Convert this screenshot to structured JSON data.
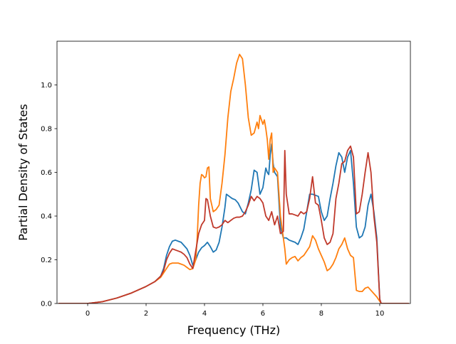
{
  "chart_data": {
    "type": "line",
    "title": "",
    "xlabel": "Frequency (THz)",
    "ylabel": "Partial Density of States",
    "xlim": [
      -1.05,
      11.05
    ],
    "ylim": [
      0.0,
      1.2
    ],
    "xticks": [
      0,
      2,
      4,
      6,
      8,
      10
    ],
    "xtick_labels": [
      "0",
      "2",
      "4",
      "6",
      "8",
      "10"
    ],
    "yticks": [
      0.0,
      0.2,
      0.4,
      0.6,
      0.8,
      1.0
    ],
    "ytick_labels": [
      "0.0",
      "0.2",
      "0.4",
      "0.6",
      "0.8",
      "1.0"
    ],
    "grid": false,
    "legend": "none",
    "series": [
      {
        "color": "#1f77b4",
        "points": [
          [
            -1.0,
            0.0
          ],
          [
            0.0,
            0.0
          ],
          [
            0.5,
            0.008
          ],
          [
            1.0,
            0.025
          ],
          [
            1.5,
            0.048
          ],
          [
            2.0,
            0.078
          ],
          [
            2.3,
            0.1
          ],
          [
            2.5,
            0.125
          ],
          [
            2.6,
            0.16
          ],
          [
            2.7,
            0.22
          ],
          [
            2.8,
            0.26
          ],
          [
            2.9,
            0.285
          ],
          [
            3.0,
            0.29
          ],
          [
            3.1,
            0.285
          ],
          [
            3.2,
            0.28
          ],
          [
            3.3,
            0.265
          ],
          [
            3.4,
            0.25
          ],
          [
            3.5,
            0.22
          ],
          [
            3.6,
            0.175
          ],
          [
            3.7,
            0.2
          ],
          [
            3.8,
            0.235
          ],
          [
            3.9,
            0.255
          ],
          [
            4.0,
            0.265
          ],
          [
            4.1,
            0.28
          ],
          [
            4.2,
            0.26
          ],
          [
            4.3,
            0.235
          ],
          [
            4.4,
            0.245
          ],
          [
            4.5,
            0.28
          ],
          [
            4.6,
            0.35
          ],
          [
            4.7,
            0.44
          ],
          [
            4.75,
            0.5
          ],
          [
            4.85,
            0.49
          ],
          [
            4.95,
            0.48
          ],
          [
            5.05,
            0.475
          ],
          [
            5.15,
            0.46
          ],
          [
            5.3,
            0.42
          ],
          [
            5.4,
            0.41
          ],
          [
            5.5,
            0.46
          ],
          [
            5.6,
            0.52
          ],
          [
            5.7,
            0.61
          ],
          [
            5.8,
            0.6
          ],
          [
            5.9,
            0.5
          ],
          [
            6.0,
            0.53
          ],
          [
            6.1,
            0.62
          ],
          [
            6.15,
            0.6
          ],
          [
            6.2,
            0.59
          ],
          [
            6.25,
            0.68
          ],
          [
            6.3,
            0.73
          ],
          [
            6.35,
            0.64
          ],
          [
            6.4,
            0.6
          ],
          [
            6.5,
            0.58
          ],
          [
            6.6,
            0.35
          ],
          [
            6.7,
            0.3
          ],
          [
            6.8,
            0.3
          ],
          [
            6.9,
            0.29
          ],
          [
            7.0,
            0.285
          ],
          [
            7.1,
            0.28
          ],
          [
            7.2,
            0.27
          ],
          [
            7.3,
            0.3
          ],
          [
            7.4,
            0.34
          ],
          [
            7.5,
            0.42
          ],
          [
            7.6,
            0.5
          ],
          [
            7.7,
            0.5
          ],
          [
            7.8,
            0.495
          ],
          [
            7.9,
            0.49
          ],
          [
            8.0,
            0.42
          ],
          [
            8.1,
            0.38
          ],
          [
            8.2,
            0.4
          ],
          [
            8.3,
            0.48
          ],
          [
            8.4,
            0.55
          ],
          [
            8.5,
            0.63
          ],
          [
            8.6,
            0.69
          ],
          [
            8.7,
            0.67
          ],
          [
            8.8,
            0.6
          ],
          [
            8.9,
            0.67
          ],
          [
            9.0,
            0.7
          ],
          [
            9.1,
            0.55
          ],
          [
            9.2,
            0.35
          ],
          [
            9.3,
            0.3
          ],
          [
            9.4,
            0.31
          ],
          [
            9.5,
            0.35
          ],
          [
            9.6,
            0.45
          ],
          [
            9.7,
            0.5
          ],
          [
            9.8,
            0.42
          ],
          [
            9.9,
            0.3
          ],
          [
            10.0,
            0.02
          ],
          [
            10.05,
            0.0
          ],
          [
            11.0,
            0.0
          ]
        ]
      },
      {
        "color": "#ff7f0e",
        "points": [
          [
            -1.0,
            0.0
          ],
          [
            0.0,
            0.0
          ],
          [
            0.5,
            0.008
          ],
          [
            1.0,
            0.025
          ],
          [
            1.5,
            0.048
          ],
          [
            2.0,
            0.078
          ],
          [
            2.3,
            0.1
          ],
          [
            2.5,
            0.12
          ],
          [
            2.6,
            0.14
          ],
          [
            2.7,
            0.16
          ],
          [
            2.8,
            0.18
          ],
          [
            2.9,
            0.185
          ],
          [
            3.0,
            0.185
          ],
          [
            3.1,
            0.185
          ],
          [
            3.2,
            0.18
          ],
          [
            3.3,
            0.175
          ],
          [
            3.4,
            0.165
          ],
          [
            3.5,
            0.155
          ],
          [
            3.6,
            0.16
          ],
          [
            3.7,
            0.2
          ],
          [
            3.75,
            0.3
          ],
          [
            3.8,
            0.45
          ],
          [
            3.85,
            0.55
          ],
          [
            3.9,
            0.59
          ],
          [
            3.95,
            0.585
          ],
          [
            4.0,
            0.575
          ],
          [
            4.05,
            0.58
          ],
          [
            4.1,
            0.62
          ],
          [
            4.15,
            0.625
          ],
          [
            4.2,
            0.48
          ],
          [
            4.3,
            0.42
          ],
          [
            4.4,
            0.43
          ],
          [
            4.5,
            0.45
          ],
          [
            4.6,
            0.55
          ],
          [
            4.7,
            0.68
          ],
          [
            4.8,
            0.85
          ],
          [
            4.9,
            0.97
          ],
          [
            5.0,
            1.03
          ],
          [
            5.1,
            1.1
          ],
          [
            5.2,
            1.14
          ],
          [
            5.3,
            1.12
          ],
          [
            5.4,
            1.0
          ],
          [
            5.5,
            0.85
          ],
          [
            5.6,
            0.77
          ],
          [
            5.7,
            0.78
          ],
          [
            5.8,
            0.83
          ],
          [
            5.85,
            0.8
          ],
          [
            5.9,
            0.86
          ],
          [
            6.0,
            0.82
          ],
          [
            6.05,
            0.84
          ],
          [
            6.1,
            0.8
          ],
          [
            6.15,
            0.75
          ],
          [
            6.2,
            0.66
          ],
          [
            6.25,
            0.75
          ],
          [
            6.3,
            0.78
          ],
          [
            6.35,
            0.6
          ],
          [
            6.4,
            0.62
          ],
          [
            6.5,
            0.6
          ],
          [
            6.6,
            0.4
          ],
          [
            6.7,
            0.3
          ],
          [
            6.75,
            0.25
          ],
          [
            6.8,
            0.18
          ],
          [
            6.9,
            0.2
          ],
          [
            7.0,
            0.21
          ],
          [
            7.1,
            0.215
          ],
          [
            7.2,
            0.195
          ],
          [
            7.3,
            0.21
          ],
          [
            7.4,
            0.22
          ],
          [
            7.5,
            0.24
          ],
          [
            7.6,
            0.26
          ],
          [
            7.7,
            0.31
          ],
          [
            7.8,
            0.29
          ],
          [
            7.9,
            0.25
          ],
          [
            8.0,
            0.22
          ],
          [
            8.1,
            0.19
          ],
          [
            8.2,
            0.15
          ],
          [
            8.3,
            0.16
          ],
          [
            8.4,
            0.18
          ],
          [
            8.5,
            0.21
          ],
          [
            8.6,
            0.25
          ],
          [
            8.7,
            0.27
          ],
          [
            8.8,
            0.3
          ],
          [
            8.9,
            0.25
          ],
          [
            9.0,
            0.22
          ],
          [
            9.1,
            0.21
          ],
          [
            9.2,
            0.06
          ],
          [
            9.3,
            0.055
          ],
          [
            9.4,
            0.055
          ],
          [
            9.5,
            0.07
          ],
          [
            9.6,
            0.075
          ],
          [
            9.7,
            0.06
          ],
          [
            9.8,
            0.045
          ],
          [
            9.9,
            0.03
          ],
          [
            10.0,
            0.01
          ],
          [
            10.05,
            0.0
          ],
          [
            11.0,
            0.0
          ]
        ]
      },
      {
        "color": "#c0392b",
        "points": [
          [
            -1.0,
            0.0
          ],
          [
            0.0,
            0.0
          ],
          [
            0.5,
            0.008
          ],
          [
            1.0,
            0.025
          ],
          [
            1.5,
            0.048
          ],
          [
            2.0,
            0.078
          ],
          [
            2.3,
            0.1
          ],
          [
            2.5,
            0.125
          ],
          [
            2.6,
            0.15
          ],
          [
            2.7,
            0.2
          ],
          [
            2.8,
            0.23
          ],
          [
            2.9,
            0.25
          ],
          [
            3.0,
            0.245
          ],
          [
            3.1,
            0.24
          ],
          [
            3.2,
            0.235
          ],
          [
            3.3,
            0.225
          ],
          [
            3.4,
            0.21
          ],
          [
            3.5,
            0.18
          ],
          [
            3.6,
            0.16
          ],
          [
            3.7,
            0.24
          ],
          [
            3.8,
            0.32
          ],
          [
            3.9,
            0.36
          ],
          [
            4.0,
            0.38
          ],
          [
            4.05,
            0.48
          ],
          [
            4.1,
            0.475
          ],
          [
            4.2,
            0.4
          ],
          [
            4.3,
            0.35
          ],
          [
            4.4,
            0.345
          ],
          [
            4.5,
            0.35
          ],
          [
            4.6,
            0.36
          ],
          [
            4.7,
            0.38
          ],
          [
            4.8,
            0.37
          ],
          [
            4.9,
            0.38
          ],
          [
            5.0,
            0.39
          ],
          [
            5.1,
            0.395
          ],
          [
            5.2,
            0.395
          ],
          [
            5.3,
            0.4
          ],
          [
            5.4,
            0.42
          ],
          [
            5.5,
            0.45
          ],
          [
            5.6,
            0.49
          ],
          [
            5.7,
            0.47
          ],
          [
            5.8,
            0.49
          ],
          [
            5.9,
            0.48
          ],
          [
            6.0,
            0.46
          ],
          [
            6.1,
            0.4
          ],
          [
            6.2,
            0.38
          ],
          [
            6.3,
            0.42
          ],
          [
            6.4,
            0.36
          ],
          [
            6.5,
            0.4
          ],
          [
            6.6,
            0.32
          ],
          [
            6.7,
            0.33
          ],
          [
            6.75,
            0.7
          ],
          [
            6.8,
            0.5
          ],
          [
            6.9,
            0.41
          ],
          [
            7.0,
            0.41
          ],
          [
            7.1,
            0.405
          ],
          [
            7.2,
            0.4
          ],
          [
            7.3,
            0.42
          ],
          [
            7.4,
            0.41
          ],
          [
            7.5,
            0.42
          ],
          [
            7.6,
            0.48
          ],
          [
            7.7,
            0.58
          ],
          [
            7.8,
            0.46
          ],
          [
            7.9,
            0.45
          ],
          [
            8.0,
            0.38
          ],
          [
            8.1,
            0.3
          ],
          [
            8.2,
            0.27
          ],
          [
            8.3,
            0.28
          ],
          [
            8.4,
            0.32
          ],
          [
            8.5,
            0.48
          ],
          [
            8.6,
            0.55
          ],
          [
            8.7,
            0.64
          ],
          [
            8.8,
            0.65
          ],
          [
            8.9,
            0.7
          ],
          [
            9.0,
            0.72
          ],
          [
            9.1,
            0.67
          ],
          [
            9.2,
            0.41
          ],
          [
            9.3,
            0.42
          ],
          [
            9.4,
            0.5
          ],
          [
            9.5,
            0.6
          ],
          [
            9.6,
            0.69
          ],
          [
            9.7,
            0.6
          ],
          [
            9.8,
            0.4
          ],
          [
            9.9,
            0.28
          ],
          [
            10.0,
            0.02
          ],
          [
            10.05,
            0.0
          ],
          [
            11.0,
            0.0
          ]
        ]
      }
    ]
  }
}
